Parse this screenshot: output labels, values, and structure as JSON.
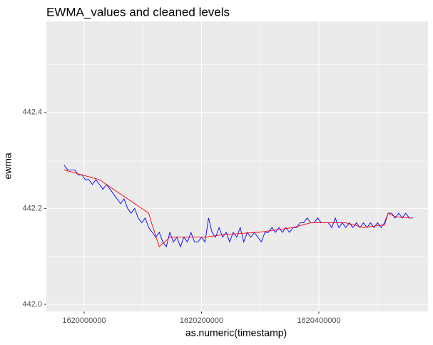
{
  "chart_data": {
    "type": "line",
    "title": "EWMA_values and cleaned levels",
    "x_label": "as.numeric(timestamp)",
    "y_label": "ewma",
    "xlim": [
      1619935600,
      1620586000
    ],
    "ylim": [
      441.985,
      442.59
    ],
    "xticks": [
      1620000000,
      1620200000,
      1620400000
    ],
    "yticks": [
      {
        "value": 442.0,
        "label": "442.0"
      },
      {
        "value": 442.2,
        "label": "442.2"
      },
      {
        "value": 442.4,
        "label": "442.4"
      }
    ],
    "grid": true,
    "x": [
      1619966000,
      1619972000,
      1619978000,
      1619984000,
      1619990000,
      1619996000,
      1620002000,
      1620008000,
      1620014000,
      1620020000,
      1620026000,
      1620032000,
      1620038000,
      1620044000,
      1620050000,
      1620056000,
      1620062000,
      1620068000,
      1620074000,
      1620080000,
      1620086000,
      1620092000,
      1620098000,
      1620104000,
      1620110000,
      1620116000,
      1620122000,
      1620128000,
      1620134000,
      1620140000,
      1620146000,
      1620152000,
      1620158000,
      1620164000,
      1620170000,
      1620176000,
      1620182000,
      1620188000,
      1620194000,
      1620200000,
      1620206000,
      1620212000,
      1620218000,
      1620224000,
      1620230000,
      1620236000,
      1620242000,
      1620248000,
      1620254000,
      1620260000,
      1620266000,
      1620272000,
      1620278000,
      1620284000,
      1620290000,
      1620296000,
      1620302000,
      1620308000,
      1620314000,
      1620320000,
      1620326000,
      1620332000,
      1620338000,
      1620344000,
      1620350000,
      1620356000,
      1620362000,
      1620368000,
      1620374000,
      1620380000,
      1620386000,
      1620392000,
      1620398000,
      1620404000,
      1620410000,
      1620416000,
      1620422000,
      1620428000,
      1620434000,
      1620440000,
      1620446000,
      1620452000,
      1620458000,
      1620464000,
      1620470000,
      1620476000,
      1620482000,
      1620488000,
      1620494000,
      1620500000,
      1620506000,
      1620512000,
      1620518000,
      1620524000,
      1620530000,
      1620536000,
      1620542000,
      1620548000,
      1620554000,
      1620560000
    ],
    "series": [
      {
        "color": "#0000ff",
        "values": [
          442.29,
          442.28,
          442.28,
          442.28,
          442.27,
          442.27,
          442.26,
          442.26,
          442.25,
          442.26,
          442.25,
          442.24,
          442.25,
          442.24,
          442.23,
          442.22,
          442.21,
          442.22,
          442.2,
          442.19,
          442.2,
          442.18,
          442.17,
          442.18,
          442.16,
          442.15,
          442.14,
          442.15,
          442.13,
          442.12,
          442.15,
          442.13,
          442.14,
          442.12,
          442.14,
          442.13,
          442.15,
          442.13,
          442.13,
          442.14,
          442.13,
          442.18,
          442.15,
          442.14,
          442.16,
          442.14,
          442.15,
          442.13,
          442.15,
          442.14,
          442.16,
          442.13,
          442.15,
          442.14,
          442.15,
          442.14,
          442.13,
          442.15,
          442.15,
          442.16,
          442.15,
          442.16,
          442.15,
          442.16,
          442.15,
          442.16,
          442.16,
          442.17,
          442.17,
          442.18,
          442.17,
          442.17,
          442.18,
          442.17,
          442.17,
          442.17,
          442.16,
          442.18,
          442.16,
          442.17,
          442.16,
          442.17,
          442.16,
          442.17,
          442.16,
          442.17,
          442.16,
          442.17,
          442.16,
          442.17,
          442.16,
          442.17,
          442.19,
          442.19,
          442.18,
          442.19,
          442.18,
          442.19,
          442.18,
          442.18
        ]
      },
      {
        "color": "#ff0000",
        "values": [
          442.28,
          442.278,
          442.276,
          442.274,
          442.272,
          442.27,
          442.268,
          442.266,
          442.264,
          442.262,
          442.26,
          442.255,
          442.25,
          442.245,
          442.24,
          442.235,
          442.23,
          442.225,
          442.22,
          442.215,
          442.21,
          442.205,
          442.2,
          442.195,
          442.19,
          442.165,
          442.143,
          442.12,
          442.127,
          442.133,
          442.14,
          442.14,
          442.14,
          442.14,
          442.14,
          442.14,
          442.14,
          442.14,
          442.14,
          442.14,
          442.14,
          442.141,
          442.142,
          442.143,
          442.144,
          442.145,
          442.146,
          442.146,
          442.147,
          442.147,
          442.148,
          442.148,
          442.149,
          442.149,
          442.15,
          442.15,
          442.151,
          442.152,
          442.153,
          442.154,
          442.155,
          442.156,
          442.157,
          442.158,
          442.159,
          442.16,
          442.162,
          442.164,
          442.166,
          442.168,
          442.17,
          442.17,
          442.17,
          442.17,
          442.17,
          442.17,
          442.17,
          442.17,
          442.17,
          442.17,
          442.17,
          442.168,
          442.166,
          442.164,
          442.162,
          442.16,
          442.161,
          442.162,
          442.163,
          442.164,
          442.165,
          442.165,
          442.19,
          442.186,
          442.183,
          442.182,
          442.181,
          442.181,
          442.18,
          442.18
        ]
      }
    ]
  }
}
